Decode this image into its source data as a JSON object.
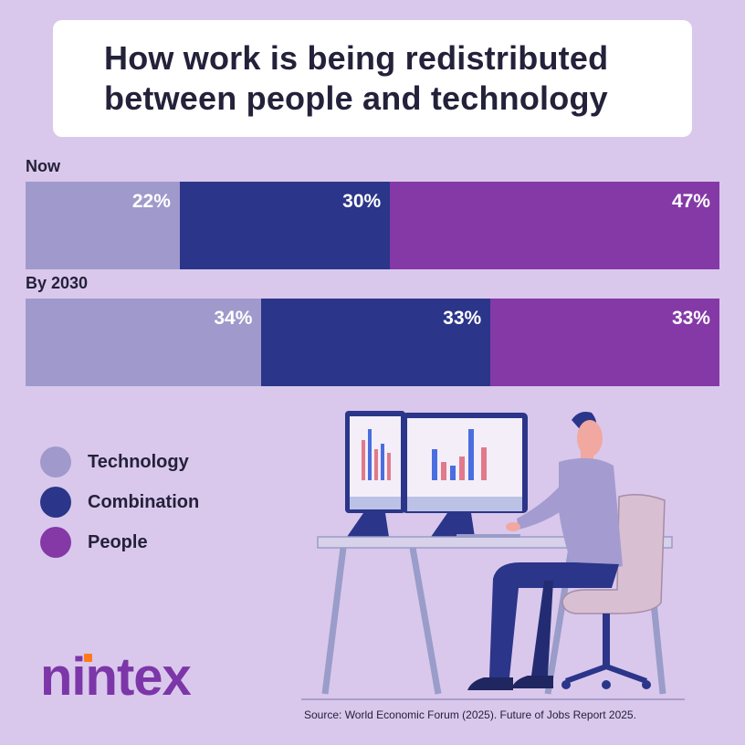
{
  "title": "How work is being redistributed between people and technology",
  "chart_data": {
    "type": "bar",
    "orientation": "horizontal",
    "stacked": true,
    "categories": [
      "Now",
      "By 2030"
    ],
    "series": [
      {
        "name": "Technology",
        "color": "#9f9acb",
        "values": [
          22,
          34
        ]
      },
      {
        "name": "Combination",
        "color": "#2b3589",
        "values": [
          30,
          33
        ]
      },
      {
        "name": "People",
        "color": "#8439a6",
        "values": [
          47,
          33
        ]
      }
    ],
    "value_labels": [
      [
        "22%",
        "30%",
        "47%"
      ],
      [
        "34%",
        "33%",
        "33%"
      ]
    ],
    "xlim": [
      0,
      100
    ],
    "legend": "left",
    "grid": false
  },
  "legend": {
    "items": [
      {
        "label": "Technology",
        "color": "#9f9acb"
      },
      {
        "label": "Combination",
        "color": "#2b3589"
      },
      {
        "label": "People",
        "color": "#8439a6"
      }
    ]
  },
  "logo": {
    "text": "nintex",
    "color": "#7c36a8",
    "accent": "#ff7a1a"
  },
  "source": "Source: World Economic Forum (2025). Future of Jobs Report 2025."
}
